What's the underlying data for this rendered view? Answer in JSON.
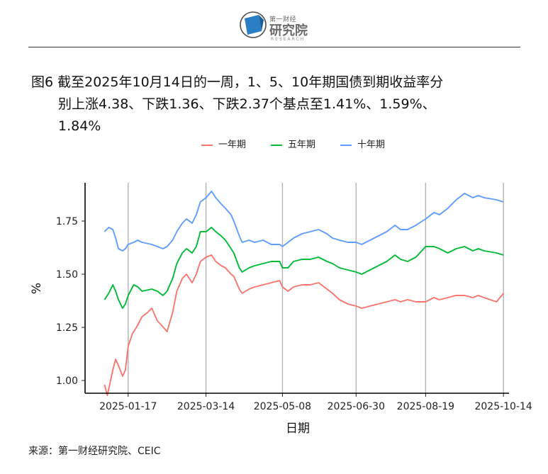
{
  "header": {
    "logo_small": "第一财经",
    "logo_big": "研究院",
    "logo_en": "RESEARCH",
    "logo_icon": "first-financial-research-logo"
  },
  "title": {
    "line1": "图6  截至2025年10月14日的一周，1、5、10年期国债到期收益率分",
    "line2": "别上涨4.38、下跌1.36、下跌2.37个基点至1.41%、1.59%、",
    "line3": "1.84%"
  },
  "source": "来源：第一财经研究院、CEIC",
  "chart_data": {
    "type": "line",
    "xlabel": "日期",
    "ylabel": "%",
    "ylim": [
      0.94,
      1.93
    ],
    "xlim": [
      "2024-12-17",
      "2025-10-18"
    ],
    "y_ticks": [
      1.0,
      1.25,
      1.5,
      1.75
    ],
    "y_tick_labels": [
      "1.00",
      "1.25",
      "1.50",
      "1.75"
    ],
    "x_ticks": [
      "2025-01-17",
      "2025-03-14",
      "2025-05-08",
      "2025-06-30",
      "2025-08-19",
      "2025-10-14"
    ],
    "grid": "vertical",
    "legend_position": "top",
    "series": [
      {
        "name": "一年期",
        "color": "#F8766D",
        "points": [
          [
            "2024-12-31",
            0.98
          ],
          [
            "2025-01-02",
            0.93
          ],
          [
            "2025-01-06",
            1.05
          ],
          [
            "2025-01-08",
            1.1
          ],
          [
            "2025-01-10",
            1.07
          ],
          [
            "2025-01-13",
            1.02
          ],
          [
            "2025-01-15",
            1.05
          ],
          [
            "2025-01-17",
            1.16
          ],
          [
            "2025-01-20",
            1.22
          ],
          [
            "2025-01-23",
            1.25
          ],
          [
            "2025-01-27",
            1.3
          ],
          [
            "2025-01-31",
            1.32
          ],
          [
            "2025-02-03",
            1.34
          ],
          [
            "2025-02-07",
            1.28
          ],
          [
            "2025-02-10",
            1.26
          ],
          [
            "2025-02-14",
            1.23
          ],
          [
            "2025-02-18",
            1.32
          ],
          [
            "2025-02-21",
            1.42
          ],
          [
            "2025-02-25",
            1.48
          ],
          [
            "2025-02-28",
            1.5
          ],
          [
            "2025-03-04",
            1.46
          ],
          [
            "2025-03-07",
            1.5
          ],
          [
            "2025-03-10",
            1.56
          ],
          [
            "2025-03-14",
            1.58
          ],
          [
            "2025-03-18",
            1.59
          ],
          [
            "2025-03-21",
            1.56
          ],
          [
            "2025-03-25",
            1.54
          ],
          [
            "2025-03-28",
            1.53
          ],
          [
            "2025-04-01",
            1.5
          ],
          [
            "2025-04-03",
            1.49
          ],
          [
            "2025-04-07",
            1.43
          ],
          [
            "2025-04-09",
            1.41
          ],
          [
            "2025-04-14",
            1.43
          ],
          [
            "2025-04-18",
            1.44
          ],
          [
            "2025-04-24",
            1.45
          ],
          [
            "2025-04-30",
            1.46
          ],
          [
            "2025-05-06",
            1.47
          ],
          [
            "2025-05-08",
            1.44
          ],
          [
            "2025-05-12",
            1.42
          ],
          [
            "2025-05-16",
            1.44
          ],
          [
            "2025-05-22",
            1.45
          ],
          [
            "2025-05-28",
            1.45
          ],
          [
            "2025-06-03",
            1.46
          ],
          [
            "2025-06-09",
            1.43
          ],
          [
            "2025-06-13",
            1.41
          ],
          [
            "2025-06-18",
            1.38
          ],
          [
            "2025-06-24",
            1.36
          ],
          [
            "2025-06-30",
            1.35
          ],
          [
            "2025-07-04",
            1.34
          ],
          [
            "2025-07-10",
            1.35
          ],
          [
            "2025-07-16",
            1.36
          ],
          [
            "2025-07-22",
            1.37
          ],
          [
            "2025-07-28",
            1.38
          ],
          [
            "2025-08-01",
            1.37
          ],
          [
            "2025-08-06",
            1.38
          ],
          [
            "2025-08-12",
            1.37
          ],
          [
            "2025-08-19",
            1.37
          ],
          [
            "2025-08-25",
            1.39
          ],
          [
            "2025-08-29",
            1.38
          ],
          [
            "2025-09-04",
            1.39
          ],
          [
            "2025-09-10",
            1.4
          ],
          [
            "2025-09-16",
            1.4
          ],
          [
            "2025-09-22",
            1.39
          ],
          [
            "2025-09-26",
            1.4
          ],
          [
            "2025-09-30",
            1.39
          ],
          [
            "2025-10-09",
            1.37
          ],
          [
            "2025-10-14",
            1.41
          ]
        ]
      },
      {
        "name": "五年期",
        "color": "#00BA38",
        "points": [
          [
            "2024-12-31",
            1.38
          ],
          [
            "2025-01-03",
            1.41
          ],
          [
            "2025-01-06",
            1.45
          ],
          [
            "2025-01-08",
            1.42
          ],
          [
            "2025-01-10",
            1.38
          ],
          [
            "2025-01-13",
            1.34
          ],
          [
            "2025-01-15",
            1.36
          ],
          [
            "2025-01-17",
            1.4
          ],
          [
            "2025-01-21",
            1.45
          ],
          [
            "2025-01-24",
            1.44
          ],
          [
            "2025-01-27",
            1.42
          ],
          [
            "2025-02-03",
            1.43
          ],
          [
            "2025-02-07",
            1.42
          ],
          [
            "2025-02-11",
            1.4
          ],
          [
            "2025-02-14",
            1.42
          ],
          [
            "2025-02-18",
            1.48
          ],
          [
            "2025-02-21",
            1.55
          ],
          [
            "2025-02-25",
            1.6
          ],
          [
            "2025-02-28",
            1.62
          ],
          [
            "2025-03-04",
            1.6
          ],
          [
            "2025-03-07",
            1.63
          ],
          [
            "2025-03-10",
            1.7
          ],
          [
            "2025-03-14",
            1.7
          ],
          [
            "2025-03-18",
            1.72
          ],
          [
            "2025-03-21",
            1.7
          ],
          [
            "2025-03-25",
            1.68
          ],
          [
            "2025-03-28",
            1.66
          ],
          [
            "2025-04-01",
            1.62
          ],
          [
            "2025-04-03",
            1.6
          ],
          [
            "2025-04-07",
            1.53
          ],
          [
            "2025-04-09",
            1.51
          ],
          [
            "2025-04-14",
            1.53
          ],
          [
            "2025-04-18",
            1.54
          ],
          [
            "2025-04-24",
            1.55
          ],
          [
            "2025-04-30",
            1.56
          ],
          [
            "2025-05-06",
            1.56
          ],
          [
            "2025-05-08",
            1.53
          ],
          [
            "2025-05-12",
            1.53
          ],
          [
            "2025-05-16",
            1.56
          ],
          [
            "2025-05-22",
            1.57
          ],
          [
            "2025-05-28",
            1.57
          ],
          [
            "2025-06-03",
            1.58
          ],
          [
            "2025-06-09",
            1.56
          ],
          [
            "2025-06-13",
            1.55
          ],
          [
            "2025-06-18",
            1.53
          ],
          [
            "2025-06-24",
            1.52
          ],
          [
            "2025-06-30",
            1.51
          ],
          [
            "2025-07-04",
            1.5
          ],
          [
            "2025-07-10",
            1.52
          ],
          [
            "2025-07-16",
            1.54
          ],
          [
            "2025-07-22",
            1.56
          ],
          [
            "2025-07-28",
            1.59
          ],
          [
            "2025-08-01",
            1.57
          ],
          [
            "2025-08-06",
            1.56
          ],
          [
            "2025-08-12",
            1.58
          ],
          [
            "2025-08-19",
            1.63
          ],
          [
            "2025-08-25",
            1.63
          ],
          [
            "2025-08-29",
            1.62
          ],
          [
            "2025-09-04",
            1.6
          ],
          [
            "2025-09-10",
            1.62
          ],
          [
            "2025-09-16",
            1.63
          ],
          [
            "2025-09-22",
            1.61
          ],
          [
            "2025-09-26",
            1.62
          ],
          [
            "2025-09-30",
            1.61
          ],
          [
            "2025-10-09",
            1.6
          ],
          [
            "2025-10-14",
            1.59
          ]
        ]
      },
      {
        "name": "十年期",
        "color": "#619CFF",
        "points": [
          [
            "2024-12-31",
            1.7
          ],
          [
            "2025-01-03",
            1.72
          ],
          [
            "2025-01-06",
            1.71
          ],
          [
            "2025-01-08",
            1.67
          ],
          [
            "2025-01-10",
            1.62
          ],
          [
            "2025-01-13",
            1.61
          ],
          [
            "2025-01-15",
            1.62
          ],
          [
            "2025-01-17",
            1.64
          ],
          [
            "2025-01-21",
            1.65
          ],
          [
            "2025-01-24",
            1.66
          ],
          [
            "2025-01-27",
            1.65
          ],
          [
            "2025-02-03",
            1.64
          ],
          [
            "2025-02-07",
            1.63
          ],
          [
            "2025-02-11",
            1.62
          ],
          [
            "2025-02-14",
            1.63
          ],
          [
            "2025-02-18",
            1.66
          ],
          [
            "2025-02-21",
            1.7
          ],
          [
            "2025-02-25",
            1.74
          ],
          [
            "2025-02-28",
            1.76
          ],
          [
            "2025-03-04",
            1.74
          ],
          [
            "2025-03-07",
            1.78
          ],
          [
            "2025-03-10",
            1.84
          ],
          [
            "2025-03-14",
            1.86
          ],
          [
            "2025-03-18",
            1.89
          ],
          [
            "2025-03-21",
            1.86
          ],
          [
            "2025-03-25",
            1.83
          ],
          [
            "2025-03-28",
            1.81
          ],
          [
            "2025-04-01",
            1.78
          ],
          [
            "2025-04-03",
            1.75
          ],
          [
            "2025-04-07",
            1.68
          ],
          [
            "2025-04-09",
            1.65
          ],
          [
            "2025-04-14",
            1.66
          ],
          [
            "2025-04-18",
            1.65
          ],
          [
            "2025-04-24",
            1.66
          ],
          [
            "2025-04-30",
            1.64
          ],
          [
            "2025-05-06",
            1.64
          ],
          [
            "2025-05-08",
            1.63
          ],
          [
            "2025-05-12",
            1.65
          ],
          [
            "2025-05-16",
            1.67
          ],
          [
            "2025-05-22",
            1.69
          ],
          [
            "2025-05-28",
            1.7
          ],
          [
            "2025-06-03",
            1.71
          ],
          [
            "2025-06-09",
            1.69
          ],
          [
            "2025-06-13",
            1.67
          ],
          [
            "2025-06-18",
            1.66
          ],
          [
            "2025-06-24",
            1.65
          ],
          [
            "2025-06-30",
            1.65
          ],
          [
            "2025-07-04",
            1.64
          ],
          [
            "2025-07-10",
            1.66
          ],
          [
            "2025-07-16",
            1.68
          ],
          [
            "2025-07-22",
            1.7
          ],
          [
            "2025-07-28",
            1.73
          ],
          [
            "2025-08-01",
            1.71
          ],
          [
            "2025-08-06",
            1.71
          ],
          [
            "2025-08-12",
            1.73
          ],
          [
            "2025-08-19",
            1.76
          ],
          [
            "2025-08-25",
            1.79
          ],
          [
            "2025-08-29",
            1.78
          ],
          [
            "2025-09-04",
            1.81
          ],
          [
            "2025-09-10",
            1.85
          ],
          [
            "2025-09-16",
            1.88
          ],
          [
            "2025-09-22",
            1.86
          ],
          [
            "2025-09-26",
            1.87
          ],
          [
            "2025-09-30",
            1.86
          ],
          [
            "2025-10-09",
            1.85
          ],
          [
            "2025-10-14",
            1.84
          ]
        ]
      }
    ]
  }
}
